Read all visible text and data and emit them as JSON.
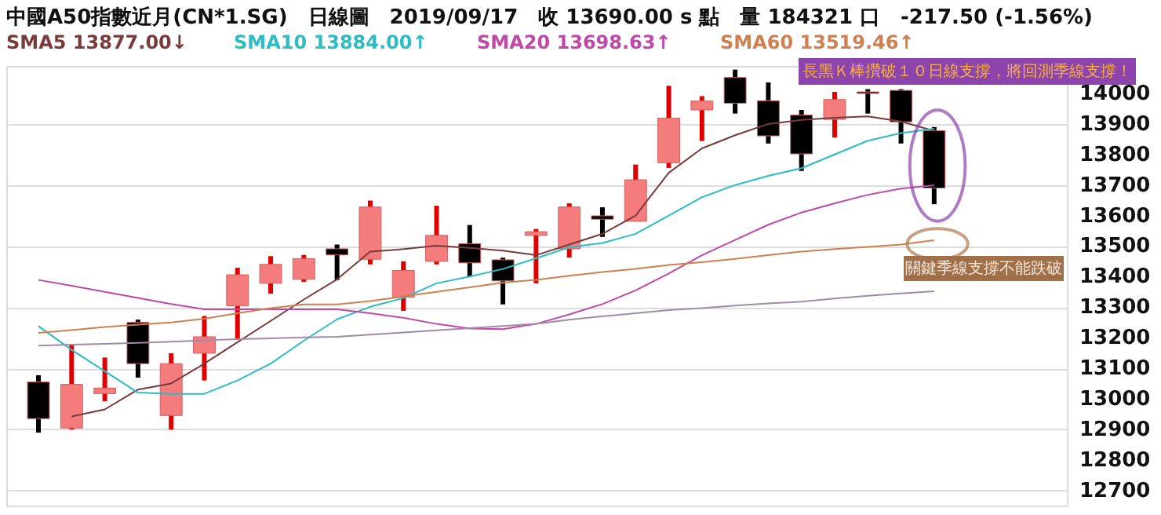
{
  "chart_data": {
    "type": "candlestick",
    "title": "中國A50指數近月(CN*1.SG)　日線圖　2019/09/17　收 13690.00 s 點　量 184321 口　-217.50 (-1.56%)",
    "categories": [
      null,
      null,
      null,
      null,
      null,
      null,
      null,
      null,
      null,
      null,
      null,
      null,
      null,
      null,
      null,
      null,
      null,
      null,
      null,
      null,
      null,
      null,
      null,
      null,
      null,
      null,
      null,
      null
    ],
    "ohlc": [
      [
        13055,
        13077,
        12889,
        12935
      ],
      [
        12904,
        13177,
        12899,
        13047
      ],
      [
        13017,
        13135,
        12992,
        13035
      ],
      [
        13250,
        13259,
        13069,
        13115
      ],
      [
        12945,
        13149,
        12899,
        13115
      ],
      [
        13149,
        13271,
        13060,
        13203
      ],
      [
        13304,
        13429,
        13196,
        13406
      ],
      [
        13378,
        13467,
        13344,
        13440
      ],
      [
        13391,
        13471,
        13383,
        13459
      ],
      [
        13491,
        13505,
        13389,
        13471
      ],
      [
        13457,
        13649,
        13440,
        13628
      ],
      [
        13332,
        13450,
        13288,
        13420
      ],
      [
        13450,
        13632,
        13440,
        13535
      ],
      [
        13508,
        13569,
        13400,
        13445
      ],
      [
        13455,
        13462,
        13309,
        13386
      ],
      [
        13535,
        13556,
        13378,
        13547
      ],
      [
        13491,
        13640,
        13462,
        13628
      ],
      [
        13599,
        13627,
        13530,
        13588
      ],
      [
        13581,
        13767,
        13581,
        13717
      ],
      [
        13773,
        14025,
        13756,
        13919
      ],
      [
        13946,
        13991,
        13844,
        13975
      ],
      [
        14052,
        14078,
        13934,
        13968
      ],
      [
        13976,
        14036,
        13836,
        13861
      ],
      [
        13929,
        13946,
        13746,
        13802
      ],
      [
        13915,
        14005,
        13856,
        13980
      ],
      [
        14005,
        14014,
        13934,
        14000
      ],
      [
        14010,
        14014,
        13836,
        13907
      ],
      [
        13878,
        13890,
        13637,
        13690
      ]
    ],
    "colors": [
      "#000000",
      "#f47c7c",
      "#f47c7c",
      "#000000",
      "#f47c7c",
      "#f47c7c",
      "#f47c7c",
      "#f47c7c",
      "#f47c7c",
      "#000000",
      "#f47c7c",
      "#f47c7c",
      "#f47c7c",
      "#000000",
      "#000000",
      "#f47c7c",
      "#f47c7c",
      "#000000",
      "#f47c7c",
      "#f47c7c",
      "#f47c7c",
      "#000000",
      "#000000",
      "#000000",
      "#f47c7c",
      "#000000",
      "#000000",
      "#000000"
    ],
    "series": [
      {
        "type": "line",
        "name": "SMA5 13877.00↓",
        "color": "#7a3a3a",
        "values": [
          null,
          12942,
          12965,
          13030,
          13050,
          13115,
          13185,
          13255,
          13325,
          13391,
          13482,
          13490,
          13501,
          13494,
          13485,
          13470,
          13505,
          13540,
          13600,
          13740,
          13820,
          13863,
          13900,
          13913,
          13920,
          13925,
          13908,
          13877
        ]
      },
      {
        "type": "line",
        "name": "SMA10 13884.00↑",
        "color": "#2bbcc4",
        "values": [
          13238,
          13160,
          13090,
          13020,
          13016,
          13016,
          13060,
          13115,
          13190,
          13260,
          13301,
          13330,
          13378,
          13400,
          13425,
          13460,
          13496,
          13510,
          13540,
          13600,
          13660,
          13700,
          13730,
          13755,
          13800,
          13845,
          13870,
          13884
        ]
      },
      {
        "type": "line",
        "name": "SMA20 13698.63↑",
        "color": "#c048a8",
        "values": [
          13389,
          13370,
          13350,
          13330,
          13310,
          13293,
          13293,
          13293,
          13293,
          13293,
          13280,
          13265,
          13245,
          13230,
          13228,
          13245,
          13276,
          13310,
          13355,
          13410,
          13470,
          13520,
          13570,
          13610,
          13640,
          13668,
          13688,
          13699
        ]
      },
      {
        "type": "line",
        "name": "SMA60 13519.46↑",
        "color": "#d08050",
        "values": [
          13216,
          13225,
          13235,
          13243,
          13250,
          13262,
          13280,
          13297,
          13309,
          13309,
          13320,
          13335,
          13350,
          13365,
          13380,
          13389,
          13403,
          13415,
          13425,
          13438,
          13447,
          13458,
          13470,
          13482,
          13490,
          13497,
          13505,
          13519
        ]
      },
      {
        "type": "line",
        "color": "#a08aa8",
        "values": [
          13174,
          13177,
          13180,
          13183,
          13187,
          13191,
          13195,
          13198,
          13201,
          13203,
          13210,
          13217,
          13224,
          13231,
          13238,
          13245,
          13259,
          13270,
          13280,
          13290,
          13297,
          13305,
          13312,
          13318,
          13328,
          13337,
          13345,
          13352
        ]
      }
    ],
    "ylim": [
      12650,
      14090
    ],
    "yticks": [
      12700,
      12800,
      12900,
      13000,
      13100,
      13200,
      13300,
      13400,
      13500,
      13600,
      13700,
      13800,
      13900,
      14000
    ],
    "grid": "y",
    "legend": "top left",
    "tick_labels": "y",
    "line_style": "solid",
    "marker": "none",
    "annotations": [
      "長黑Ｋ棒攢破１０日線支撐，將回測季線支撐！",
      "關鍵季線支撐不能跌破"
    ]
  }
}
